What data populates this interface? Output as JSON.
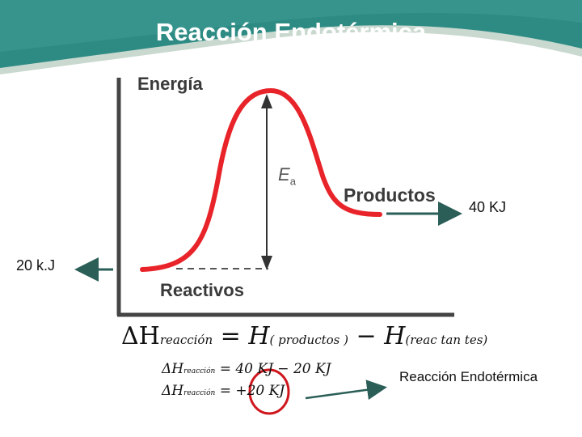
{
  "title": "Reacción Endotérmica",
  "diagram": {
    "axis_label": "Energía",
    "activation_label": "E",
    "activation_sub": "a",
    "products_label": "Productos",
    "reactants_label": "Reactivos",
    "products_value": "40 KJ",
    "reactants_value": "20 k.J",
    "side_label": "Reacción Endotérmica"
  },
  "equations": {
    "main": {
      "lhs": "ΔH",
      "lhs_sub": "reacción",
      "eq": "=",
      "h1": "H",
      "h1_sub": "( productos )",
      "minus": "−",
      "h2": "H",
      "h2_sub": "(reac tan tes)"
    },
    "line2": {
      "lhs": "ΔH",
      "lhs_sub": "reacción",
      "rhs": "= 40 KJ − 20 KJ"
    },
    "line3": {
      "lhs": "ΔH",
      "lhs_sub": "reacción",
      "rhs": "= +20 KJ"
    }
  },
  "colors": {
    "header": "#2e8b84",
    "curve": "#e8242a",
    "arrow": "#2a5e57",
    "highlight_circle": "#d0161d",
    "axis": "#444444"
  }
}
